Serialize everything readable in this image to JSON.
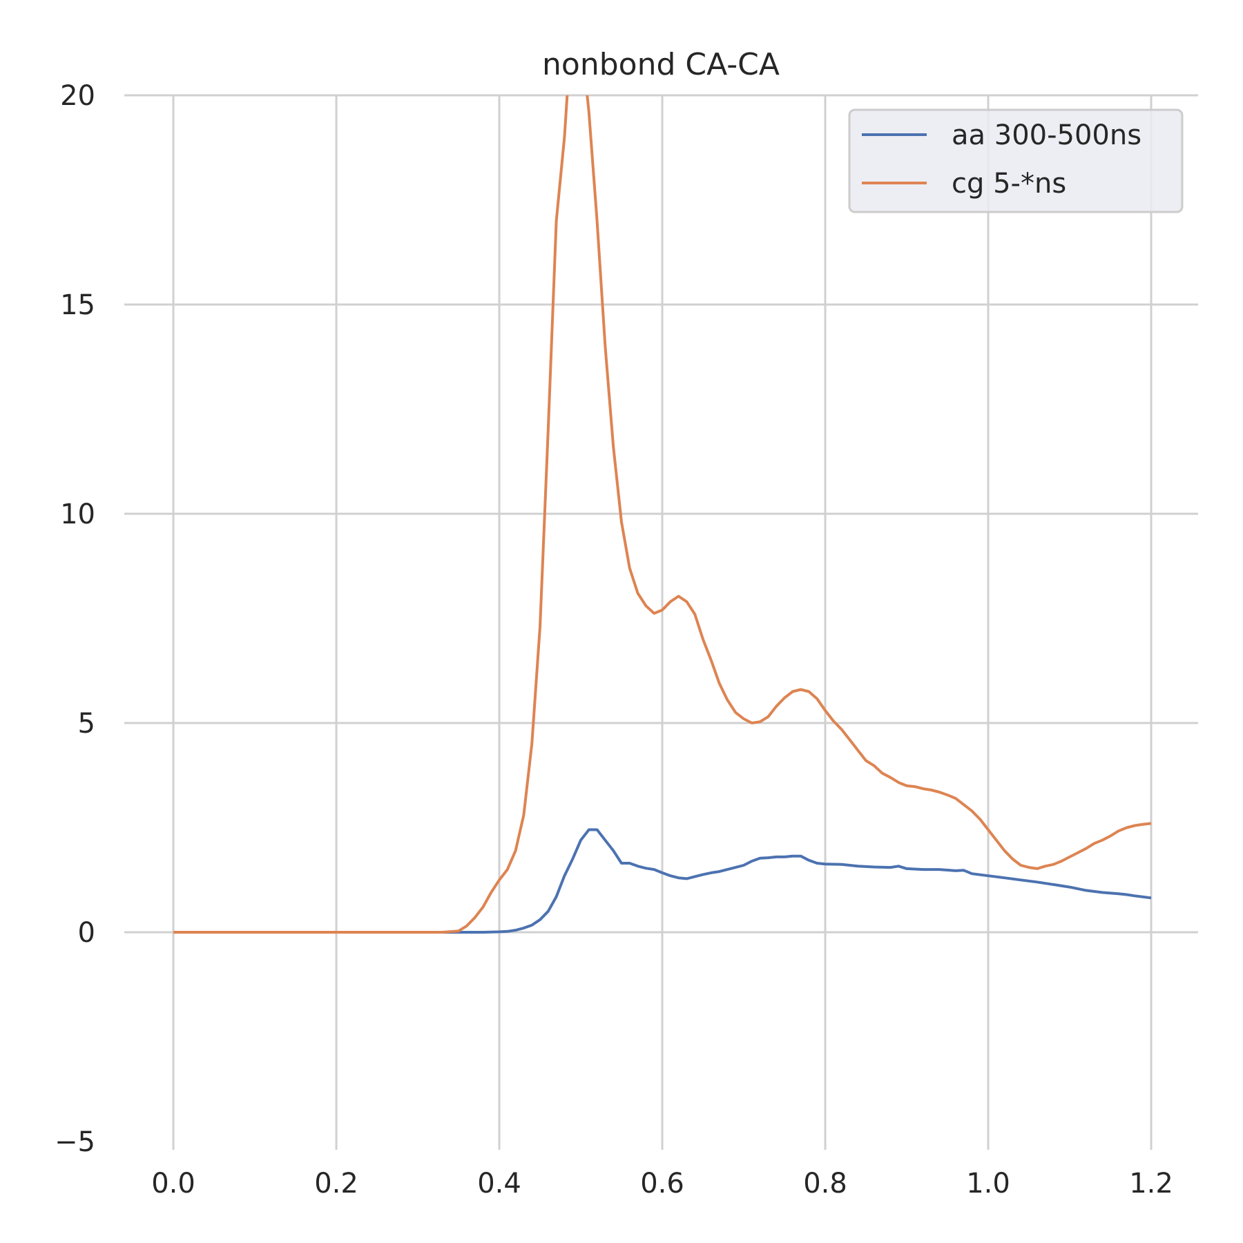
{
  "chart_data": {
    "type": "line",
    "title": "nonbond CA-CA",
    "xlabel": "",
    "ylabel": "",
    "xlim": [
      -0.05,
      1.25
    ],
    "ylim": [
      -5,
      20
    ],
    "xticks": [
      0.0,
      0.2,
      0.4,
      0.6,
      0.8,
      1.0,
      1.2
    ],
    "xtick_labels": [
      "0.0",
      "0.2",
      "0.4",
      "0.6",
      "0.8",
      "1.0",
      "1.2"
    ],
    "yticks": [
      -5,
      0,
      5,
      10,
      15,
      20
    ],
    "ytick_labels": [
      "−5",
      "0",
      "5",
      "10",
      "15",
      "20"
    ],
    "grid": true,
    "legend_position": "top-right",
    "series": [
      {
        "name": "aa 300-500ns",
        "color": "#4c72b0",
        "x": [
          0.0,
          0.05,
          0.1,
          0.15,
          0.2,
          0.25,
          0.3,
          0.35,
          0.38,
          0.4,
          0.41,
          0.42,
          0.43,
          0.44,
          0.45,
          0.46,
          0.47,
          0.48,
          0.49,
          0.5,
          0.51,
          0.52,
          0.53,
          0.54,
          0.55,
          0.56,
          0.57,
          0.58,
          0.59,
          0.6,
          0.61,
          0.62,
          0.63,
          0.64,
          0.65,
          0.66,
          0.67,
          0.68,
          0.69,
          0.7,
          0.71,
          0.72,
          0.73,
          0.74,
          0.75,
          0.76,
          0.77,
          0.78,
          0.79,
          0.8,
          0.82,
          0.84,
          0.86,
          0.88,
          0.89,
          0.9,
          0.92,
          0.94,
          0.96,
          0.97,
          0.98,
          1.0,
          1.02,
          1.04,
          1.06,
          1.08,
          1.1,
          1.12,
          1.14,
          1.16,
          1.17,
          1.18,
          1.2
        ],
        "y": [
          0.0,
          0.0,
          0.0,
          0.0,
          0.0,
          0.0,
          0.0,
          0.0,
          0.0,
          0.01,
          0.02,
          0.05,
          0.1,
          0.17,
          0.3,
          0.5,
          0.85,
          1.35,
          1.75,
          2.2,
          2.45,
          2.45,
          2.2,
          1.95,
          1.65,
          1.65,
          1.58,
          1.53,
          1.5,
          1.42,
          1.35,
          1.3,
          1.28,
          1.33,
          1.38,
          1.42,
          1.45,
          1.5,
          1.55,
          1.6,
          1.7,
          1.77,
          1.78,
          1.8,
          1.8,
          1.82,
          1.82,
          1.72,
          1.65,
          1.63,
          1.62,
          1.58,
          1.56,
          1.55,
          1.58,
          1.52,
          1.5,
          1.5,
          1.47,
          1.48,
          1.4,
          1.35,
          1.3,
          1.25,
          1.2,
          1.14,
          1.08,
          1.0,
          0.95,
          0.92,
          0.9,
          0.87,
          0.82
        ]
      },
      {
        "name": "cg 5-*ns",
        "color": "#dd8452",
        "x": [
          0.0,
          0.05,
          0.1,
          0.15,
          0.2,
          0.25,
          0.3,
          0.33,
          0.35,
          0.36,
          0.37,
          0.38,
          0.39,
          0.4,
          0.41,
          0.42,
          0.43,
          0.44,
          0.45,
          0.46,
          0.47,
          0.48,
          0.49,
          0.5,
          0.51,
          0.52,
          0.53,
          0.54,
          0.55,
          0.56,
          0.57,
          0.58,
          0.59,
          0.6,
          0.61,
          0.62,
          0.63,
          0.64,
          0.65,
          0.66,
          0.67,
          0.68,
          0.69,
          0.7,
          0.71,
          0.72,
          0.73,
          0.74,
          0.75,
          0.76,
          0.77,
          0.78,
          0.79,
          0.8,
          0.81,
          0.82,
          0.83,
          0.84,
          0.85,
          0.86,
          0.87,
          0.88,
          0.89,
          0.9,
          0.91,
          0.92,
          0.93,
          0.94,
          0.95,
          0.96,
          0.97,
          0.98,
          0.99,
          1.0,
          1.01,
          1.02,
          1.03,
          1.04,
          1.05,
          1.06,
          1.07,
          1.08,
          1.09,
          1.1,
          1.11,
          1.12,
          1.13,
          1.14,
          1.15,
          1.16,
          1.17,
          1.18,
          1.19,
          1.2
        ],
        "y": [
          0.0,
          0.0,
          0.0,
          0.0,
          0.0,
          0.0,
          0.0,
          0.0,
          0.03,
          0.15,
          0.35,
          0.6,
          0.95,
          1.25,
          1.5,
          1.95,
          2.8,
          4.5,
          7.3,
          12.0,
          17.0,
          19.0,
          22.0,
          21.5,
          19.6,
          17.0,
          14.0,
          11.6,
          9.8,
          8.7,
          8.1,
          7.8,
          7.62,
          7.7,
          7.9,
          8.03,
          7.9,
          7.6,
          7.0,
          6.5,
          5.95,
          5.55,
          5.25,
          5.1,
          5.0,
          5.03,
          5.15,
          5.4,
          5.6,
          5.75,
          5.8,
          5.75,
          5.58,
          5.3,
          5.05,
          4.85,
          4.6,
          4.35,
          4.1,
          3.98,
          3.8,
          3.7,
          3.58,
          3.5,
          3.48,
          3.43,
          3.4,
          3.35,
          3.28,
          3.2,
          3.05,
          2.9,
          2.7,
          2.45,
          2.2,
          1.95,
          1.75,
          1.6,
          1.55,
          1.52,
          1.58,
          1.62,
          1.7,
          1.8,
          1.9,
          2.0,
          2.12,
          2.2,
          2.3,
          2.42,
          2.5,
          2.55,
          2.58,
          2.6
        ]
      }
    ]
  }
}
